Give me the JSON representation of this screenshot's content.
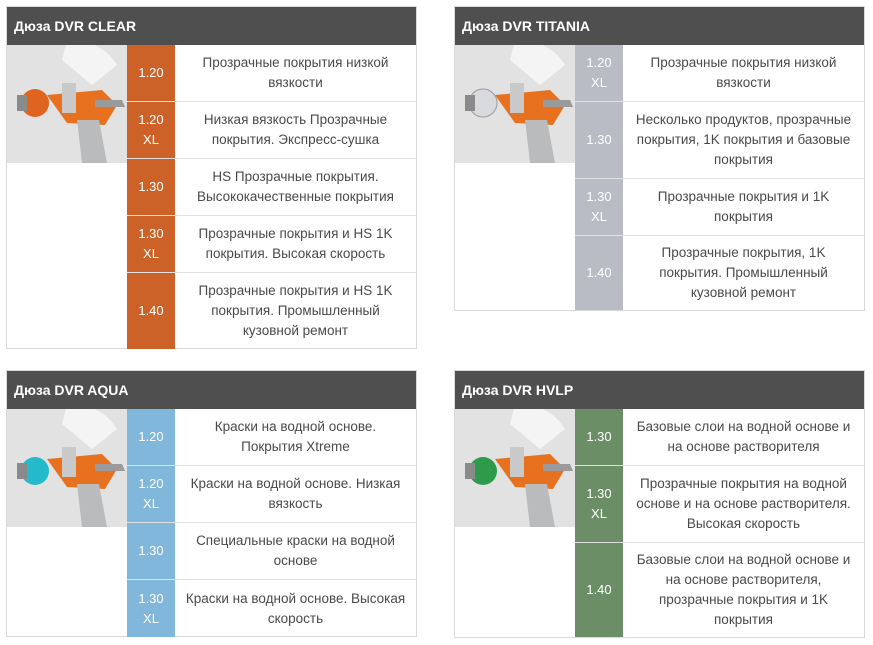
{
  "panels": [
    {
      "title": "Дюза DVR CLEAR",
      "accent": "#cc6228",
      "cap_color": "#e0641f",
      "rows": [
        {
          "code": "1.20",
          "xl": "",
          "desc": "Прозрачные покрытия низкой вязкости"
        },
        {
          "code": "1.20",
          "xl": "XL",
          "desc": "Низкая вязкость Прозрачные покрытия. Экспресс-сушка"
        },
        {
          "code": "1.30",
          "xl": "",
          "desc": "HS Прозрачные покрытия. Высококачественные покрытия"
        },
        {
          "code": "1.30",
          "xl": "XL",
          "desc": "Прозрачные покрытия и HS 1K покрытия. Высокая скорость"
        },
        {
          "code": "1.40",
          "xl": "",
          "desc": "Прозрачные покрытия и HS 1K покрытия. Промышленный кузовной ремонт"
        }
      ]
    },
    {
      "title": "Дюза DVR TITANIA",
      "accent": "#b9bcc4",
      "cap_color": "#d8dadd",
      "rows": [
        {
          "code": "1.20",
          "xl": "XL",
          "desc": "Прозрачные покрытия низкой вязкости"
        },
        {
          "code": "1.30",
          "xl": "",
          "desc": "Несколько продуктов, прозрачные покрытия, 1K покрытия и базовые покрытия"
        },
        {
          "code": "1.30",
          "xl": "XL",
          "desc": "Прозрачные покрытия и 1K покрытия"
        },
        {
          "code": "1.40",
          "xl": "",
          "desc": "Прозрачные покрытия, 1K покрытия. Промышленный кузовной ремонт"
        }
      ]
    },
    {
      "title": "Дюза DVR AQUA",
      "accent": "#80b7da",
      "cap_color": "#25b9cc",
      "rows": [
        {
          "code": "1.20",
          "xl": "",
          "desc": "Краски на водной основе. Покрытия Xtreme"
        },
        {
          "code": "1.20",
          "xl": "XL",
          "desc": "Краски на водной основе. Низкая вязкость"
        },
        {
          "code": "1.30",
          "xl": "",
          "desc": "Специальные краски на водной основе"
        },
        {
          "code": "1.30",
          "xl": "XL",
          "desc": "Краски на водной основе. Высокая скорость"
        }
      ]
    },
    {
      "title": "Дюза DVR HVLP",
      "accent": "#6b8e67",
      "cap_color": "#2d9b4a",
      "rows": [
        {
          "code": "1.30",
          "xl": "",
          "desc": "Базовые слои на водной основе и на основе растворителя"
        },
        {
          "code": "1.30",
          "xl": "XL",
          "desc": "Прозрачные покрытия на водной основе и на основе растворителя. Высокая скорость"
        },
        {
          "code": "1.40",
          "xl": "",
          "desc": "Базовые слои на водной основе и на основе растворителя, прозрачные покрытия и 1K покрытия"
        }
      ]
    }
  ]
}
